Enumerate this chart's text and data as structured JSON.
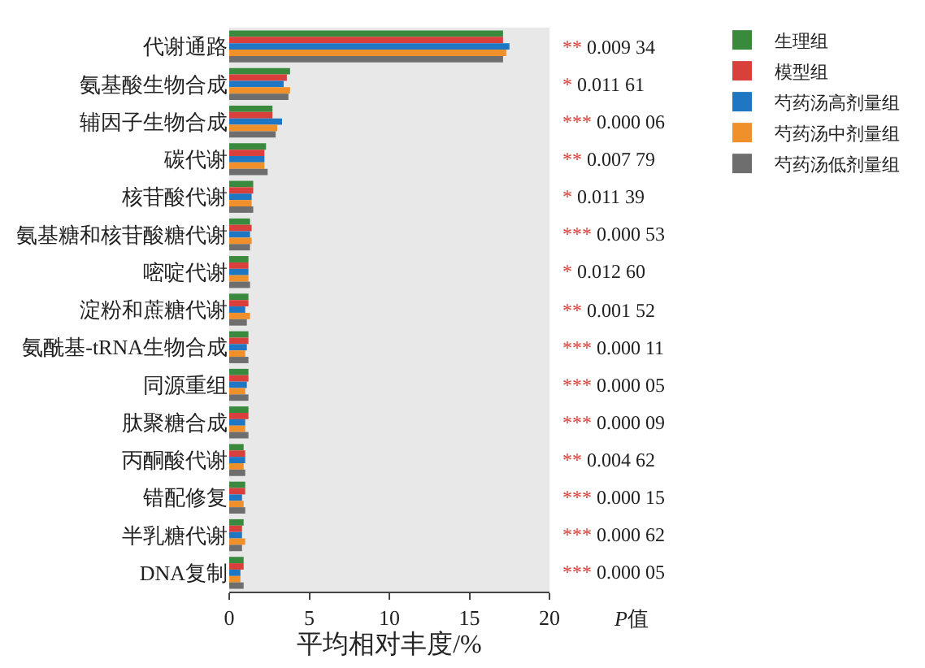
{
  "chart_data": {
    "type": "bar",
    "orientation": "horizontal",
    "xlabel": "平均相对丰度/%",
    "xlim": [
      0,
      20
    ],
    "xticks": [
      0,
      5,
      10,
      15,
      20
    ],
    "grid": false,
    "legend": "top right",
    "categories": [
      "代谢通路",
      "氨基酸生物合成",
      "辅因子生物合成",
      "碳代谢",
      "核苷酸代谢",
      "氨基糖和核苷酸糖代谢",
      "嘧啶代谢",
      "淀粉和蔗糖代谢",
      "氨酰基-tRNA生物合成",
      "同源重组",
      "肽聚糖合成",
      "丙酮酸代谢",
      "错配修复",
      "半乳糖代谢",
      "DNA复制"
    ],
    "series": [
      {
        "name": "生理组",
        "color": "#3a8a3e",
        "values": [
          17.1,
          3.8,
          2.7,
          2.3,
          1.5,
          1.3,
          1.2,
          1.2,
          1.2,
          1.2,
          1.2,
          0.9,
          1.0,
          0.9,
          0.9
        ]
      },
      {
        "name": "模型组",
        "color": "#d9403b",
        "values": [
          17.1,
          3.6,
          2.7,
          2.2,
          1.5,
          1.4,
          1.2,
          1.2,
          1.2,
          1.2,
          1.2,
          1.0,
          1.0,
          0.8,
          0.9
        ]
      },
      {
        "name": "芍药汤高剂量组",
        "color": "#1f77c4",
        "values": [
          17.5,
          3.4,
          3.3,
          2.2,
          1.4,
          1.3,
          1.2,
          1.0,
          1.1,
          1.1,
          1.0,
          1.0,
          0.8,
          0.8,
          0.7
        ]
      },
      {
        "name": "芍药汤中剂量组",
        "color": "#f0902a",
        "values": [
          17.3,
          3.8,
          3.0,
          2.2,
          1.4,
          1.4,
          1.2,
          1.3,
          1.0,
          1.0,
          1.0,
          0.9,
          0.9,
          1.0,
          0.7
        ]
      },
      {
        "name": "芍药汤低剂量组",
        "color": "#6e6e6e",
        "values": [
          17.1,
          3.7,
          2.9,
          2.4,
          1.5,
          1.3,
          1.3,
          1.1,
          1.2,
          1.2,
          1.2,
          1.0,
          1.0,
          0.8,
          0.9
        ]
      }
    ],
    "annotations": [
      "** 0.009 34",
      "* 0.011 61",
      "*** 0.000 06",
      "** 0.007 79",
      "* 0.011 39",
      "*** 0.000 53",
      "* 0.012 60",
      "** 0.001 52",
      "*** 0.000 11",
      "*** 0.000 05",
      "*** 0.000 09",
      "** 0.004 62",
      "*** 0.000 15",
      "*** 0.000 62",
      "*** 0.000 05",
      "P值"
    ]
  }
}
